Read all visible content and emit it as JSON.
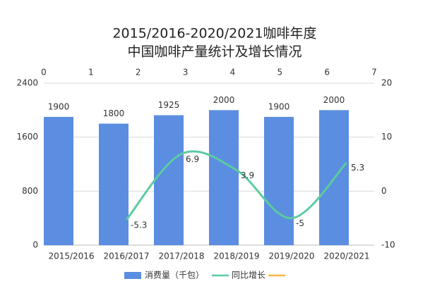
{
  "chart_data": {
    "type": "bar_line",
    "title_lines": [
      "2015/2016-2020/2021咖啡年度",
      "中国咖啡产量统计及增长情况"
    ],
    "categories": [
      "2015/2016",
      "2016/2017",
      "2017/2018",
      "2018/2019",
      "2019/2020",
      "2020/2021"
    ],
    "series": [
      {
        "name": "消费量（千包）",
        "color": "#5b8ee0",
        "values": [
          1900,
          1800,
          1925,
          2000,
          1900,
          2000
        ]
      },
      {
        "name": "同比增长",
        "color": "#5ccba0",
        "axis": "y2",
        "values": [
          null,
          -5.3,
          6.9,
          3.9,
          -5,
          5.3
        ]
      }
    ],
    "ylim": [
      0,
      2400
    ],
    "yticks": [
      0,
      800,
      1600,
      2400
    ],
    "y2lim": [
      -10,
      20
    ],
    "y2ticks": [
      -10,
      0,
      10,
      20
    ],
    "x2lim": [
      0,
      7
    ],
    "x2ticks": [
      0,
      1,
      2,
      3,
      4,
      5,
      6,
      7
    ],
    "grid": true
  }
}
